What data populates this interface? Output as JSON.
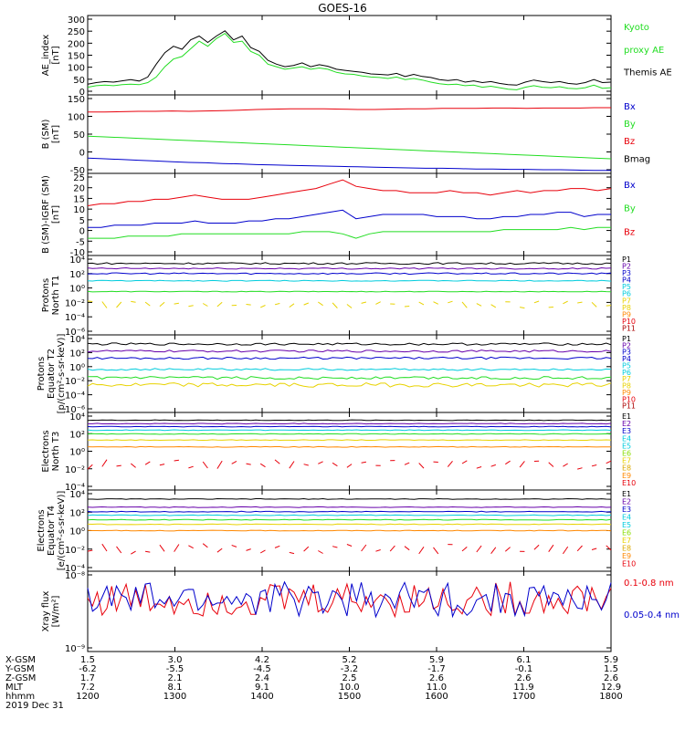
{
  "title": "GOES-16",
  "colors": {
    "black": "#000000",
    "red": "#e8000b",
    "green": "#22dd22",
    "blue": "#0000cc",
    "orange": "#ff8800",
    "yellow": "#e8d200",
    "cyan": "#00ccdd",
    "purple": "#6600aa",
    "gold": "#ddaa00",
    "lgreen": "#88dd00",
    "darkred": "#aa0000"
  },
  "chart_data": [
    {
      "type": "line",
      "id": "ae",
      "ylabel": [
        "AE_index",
        "[nT]"
      ],
      "yticks": [
        "300",
        "250",
        "200",
        "150",
        "100",
        "50",
        "0"
      ],
      "ylim": [
        0,
        310
      ],
      "legend": [
        {
          "text": "Kyoto",
          "color": "green"
        },
        {
          "text": "proxy AE",
          "color": "green"
        },
        {
          "text": "Themis AE",
          "color": "black"
        }
      ],
      "series": [
        {
          "name": "Themis AE",
          "color": "black",
          "values": [
            42,
            48,
            52,
            50,
            55,
            60,
            54,
            70,
            120,
            165,
            190,
            178,
            215,
            230,
            205,
            230,
            250,
            215,
            230,
            185,
            170,
            135,
            120,
            110,
            115,
            125,
            110,
            118,
            112,
            100,
            96,
            92,
            88,
            82,
            80,
            78,
            84,
            72,
            80,
            72,
            68,
            60,
            56,
            60,
            50,
            55,
            48,
            52,
            45,
            40,
            38,
            50,
            58,
            52,
            48,
            52,
            45,
            42,
            48,
            60,
            48,
            50
          ]
        },
        {
          "name": "Kyoto proxy AE",
          "color": "green",
          "values": [
            30,
            36,
            38,
            36,
            40,
            42,
            40,
            48,
            70,
            110,
            140,
            150,
            180,
            210,
            190,
            220,
            240,
            205,
            210,
            170,
            155,
            120,
            110,
            100,
            105,
            110,
            100,
            105,
            100,
            88,
            82,
            80,
            74,
            70,
            68,
            64,
            70,
            60,
            64,
            58,
            50,
            44,
            40,
            42,
            36,
            38,
            30,
            34,
            28,
            22,
            20,
            30,
            36,
            30,
            28,
            32,
            26,
            24,
            28,
            38,
            26,
            28
          ]
        }
      ]
    },
    {
      "type": "line",
      "id": "bsm",
      "ylabel": [
        "B (SM)",
        "[nT]"
      ],
      "yticks": [
        "150",
        "100",
        "50",
        "0",
        "-50"
      ],
      "ylim": [
        -60,
        155
      ],
      "legend": [
        {
          "text": "Bx",
          "color": "blue"
        },
        {
          "text": "By",
          "color": "green"
        },
        {
          "text": "Bz",
          "color": "red"
        },
        {
          "text": "Bmag",
          "color": "black"
        }
      ],
      "series": [
        {
          "name": "Bz",
          "color": "red",
          "values": [
            108,
            108,
            109,
            110,
            110,
            111,
            110,
            111,
            112,
            113,
            115,
            116,
            117,
            117,
            117,
            116,
            115,
            115,
            116,
            117,
            117,
            118,
            118,
            118,
            119,
            119,
            118,
            119,
            119,
            119,
            120,
            120
          ]
        },
        {
          "name": "By",
          "color": "green",
          "values": [
            42,
            40,
            38,
            36,
            34,
            32,
            30,
            28,
            26,
            24,
            22,
            20,
            18,
            16,
            14,
            12,
            10,
            8,
            6,
            4,
            2,
            0,
            -2,
            -4,
            -6,
            -8,
            -10,
            -12,
            -14,
            -16,
            -18,
            -20
          ]
        },
        {
          "name": "Bx",
          "color": "blue",
          "values": [
            -18,
            -20,
            -22,
            -24,
            -26,
            -28,
            -30,
            -31,
            -33,
            -34,
            -36,
            -37,
            -38,
            -39,
            -40,
            -41,
            -42,
            -43,
            -44,
            -45,
            -46,
            -46,
            -47,
            -48,
            -48,
            -49,
            -49,
            -50,
            -50,
            -51,
            -52,
            -52
          ]
        }
      ]
    },
    {
      "type": "line",
      "id": "bigrf",
      "ylabel": [
        "B (SM)-IGRF (SM)",
        "[nT]"
      ],
      "yticks": [
        "25",
        "20",
        "15",
        "10",
        "5",
        "0",
        "-5",
        "-10"
      ],
      "ylim": [
        -11,
        27
      ],
      "legend": [
        {
          "text": "Bx",
          "color": "blue"
        },
        {
          "text": "By",
          "color": "green"
        },
        {
          "text": "Bz",
          "color": "red"
        }
      ],
      "series": [
        {
          "name": "Bz",
          "color": "red",
          "values": [
            12,
            13,
            13,
            14,
            14,
            15,
            15,
            16,
            17,
            16,
            15,
            15,
            15,
            16,
            17,
            18,
            19,
            20,
            22,
            24,
            21,
            20,
            19,
            19,
            18,
            18,
            18,
            19,
            18,
            18,
            17,
            18,
            19,
            18,
            19,
            19,
            20,
            20,
            19,
            20
          ]
        },
        {
          "name": "Bx",
          "color": "blue",
          "values": [
            2,
            2,
            3,
            3,
            3,
            4,
            4,
            4,
            5,
            4,
            4,
            4,
            5,
            5,
            6,
            6,
            7,
            8,
            9,
            10,
            6,
            7,
            8,
            8,
            8,
            8,
            7,
            7,
            7,
            6,
            6,
            7,
            7,
            8,
            8,
            9,
            9,
            7,
            8,
            8
          ]
        },
        {
          "name": "By",
          "color": "green",
          "values": [
            -3,
            -3,
            -3,
            -2,
            -2,
            -2,
            -2,
            -1,
            -1,
            -1,
            -1,
            -1,
            -1,
            -1,
            -1,
            -1,
            0,
            0,
            0,
            -1,
            -3,
            -1,
            0,
            0,
            0,
            0,
            0,
            0,
            0,
            0,
            0,
            1,
            1,
            1,
            1,
            1,
            2,
            1,
            2,
            2
          ]
        }
      ]
    },
    {
      "type": "line",
      "id": "pn",
      "log": true,
      "ylabel": [
        "Protons",
        "North T1"
      ],
      "yticks": [
        "10⁴",
        "10²",
        "10⁰",
        "10⁻²",
        "10⁻⁴",
        "10⁻⁶"
      ],
      "ylim": [
        -7,
        4
      ],
      "legend": [
        {
          "text": "P1",
          "color": "black"
        },
        {
          "text": "P2",
          "color": "purple"
        },
        {
          "text": "P3",
          "color": "blue"
        },
        {
          "text": "P4",
          "color": "blue"
        },
        {
          "text": "P5",
          "color": "cyan"
        },
        {
          "text": "P6",
          "color": "cyan"
        },
        {
          "text": "P7",
          "color": "yellow"
        },
        {
          "text": "P8",
          "color": "yellow"
        },
        {
          "text": "P9",
          "color": "orange"
        },
        {
          "text": "P10",
          "color": "red"
        },
        {
          "text": "P11",
          "color": "darkred"
        }
      ],
      "series": [
        {
          "name": "P1",
          "color": "black",
          "level": 2.9,
          "noise": 0.12
        },
        {
          "name": "P2",
          "color": "purple",
          "level": 2.2,
          "noise": 0.1
        },
        {
          "name": "P3",
          "color": "blue",
          "level": 1.5,
          "noise": 0.1
        },
        {
          "name": "P4",
          "color": "cyan",
          "level": 0.5,
          "noise": 0.06
        },
        {
          "name": "P5",
          "color": "green",
          "level": -1.0,
          "noise": 0.05
        },
        {
          "name": "P6",
          "color": "yellow",
          "level": -2.8,
          "noise": 0.5,
          "broken": true
        }
      ]
    },
    {
      "type": "line",
      "id": "pe",
      "log": true,
      "ylabel": [
        "Protons",
        "Equator T2",
        "[p/(cm²-s-sr-keV)]"
      ],
      "yticks": [
        "10⁴",
        "10²",
        "10⁰",
        "10⁻²",
        "10⁻⁴",
        "10⁻⁶"
      ],
      "ylim": [
        -7,
        4
      ],
      "legend": [
        {
          "text": "P1",
          "color": "black"
        },
        {
          "text": "P2",
          "color": "purple"
        },
        {
          "text": "P3",
          "color": "blue"
        },
        {
          "text": "P4",
          "color": "blue"
        },
        {
          "text": "P5",
          "color": "cyan"
        },
        {
          "text": "P6",
          "color": "cyan"
        },
        {
          "text": "P7",
          "color": "yellow"
        },
        {
          "text": "P8",
          "color": "yellow"
        },
        {
          "text": "P9",
          "color": "orange"
        },
        {
          "text": "P10",
          "color": "red"
        },
        {
          "text": "P11",
          "color": "darkred"
        }
      ],
      "series": [
        {
          "name": "P1",
          "color": "black",
          "level": 2.7,
          "noise": 0.15
        },
        {
          "name": "P2",
          "color": "purple",
          "level": 1.7,
          "noise": 0.15
        },
        {
          "name": "P3",
          "color": "blue",
          "level": 0.7,
          "noise": 0.15
        },
        {
          "name": "P4",
          "color": "cyan",
          "level": -0.9,
          "noise": 0.15
        },
        {
          "name": "P5",
          "color": "green",
          "level": -2.1,
          "noise": 0.2
        },
        {
          "name": "P6",
          "color": "yellow",
          "level": -3.1,
          "noise": 0.3
        }
      ]
    },
    {
      "type": "line",
      "id": "en",
      "log": true,
      "ylabel": [
        "Electrons",
        "North T3"
      ],
      "yticks": [
        "10⁴",
        "10²",
        "10⁰",
        "10⁻²",
        "10⁻⁴"
      ],
      "ylim": [
        -5,
        4
      ],
      "legend": [
        {
          "text": "E1",
          "color": "black"
        },
        {
          "text": "E2",
          "color": "purple"
        },
        {
          "text": "E3",
          "color": "blue"
        },
        {
          "text": "E4",
          "color": "cyan"
        },
        {
          "text": "E5",
          "color": "cyan"
        },
        {
          "text": "E6",
          "color": "lgreen"
        },
        {
          "text": "E7",
          "color": "yellow"
        },
        {
          "text": "E8",
          "color": "gold"
        },
        {
          "text": "E9",
          "color": "orange"
        },
        {
          "text": "E10",
          "color": "red"
        }
      ],
      "series": [
        {
          "name": "E1",
          "color": "black",
          "level": 3.1,
          "noise": 0.04
        },
        {
          "name": "E2",
          "color": "purple",
          "level": 2.7,
          "noise": 0.04
        },
        {
          "name": "E3",
          "color": "blue",
          "level": 2.35,
          "noise": 0.04
        },
        {
          "name": "E4",
          "color": "cyan",
          "level": 1.95,
          "noise": 0.04
        },
        {
          "name": "E5",
          "color": "green",
          "level": 1.5,
          "noise": 0.04
        },
        {
          "name": "E6",
          "color": "yellow",
          "level": 0.8,
          "noise": 0.04
        },
        {
          "name": "E7",
          "color": "orange",
          "level": 0.0,
          "noise": 0.04
        },
        {
          "name": "E8",
          "color": "red",
          "level": -2.0,
          "noise": 0.6,
          "broken": true
        }
      ]
    },
    {
      "type": "line",
      "id": "ee",
      "log": true,
      "ylabel": [
        "Electrons",
        "Equator T4",
        "[e/(cm²-s-sr-keV)]"
      ],
      "yticks": [
        "10⁴",
        "10²",
        "10⁰",
        "10⁻²",
        "10⁻⁴"
      ],
      "ylim": [
        -5,
        4
      ],
      "legend": [
        {
          "text": "E1",
          "color": "black"
        },
        {
          "text": "E2",
          "color": "purple"
        },
        {
          "text": "E3",
          "color": "blue"
        },
        {
          "text": "E4",
          "color": "cyan"
        },
        {
          "text": "E5",
          "color": "cyan"
        },
        {
          "text": "E6",
          "color": "lgreen"
        },
        {
          "text": "E7",
          "color": "yellow"
        },
        {
          "text": "E8",
          "color": "gold"
        },
        {
          "text": "E9",
          "color": "orange"
        },
        {
          "text": "E10",
          "color": "red"
        }
      ],
      "series": [
        {
          "name": "E1",
          "color": "black",
          "level": 3.0,
          "noise": 0.04
        },
        {
          "name": "E2",
          "color": "purple",
          "level": 2.1,
          "noise": 0.04
        },
        {
          "name": "E3",
          "color": "blue",
          "level": 1.6,
          "noise": 0.04
        },
        {
          "name": "E4",
          "color": "cyan",
          "level": 1.2,
          "noise": 0.04
        },
        {
          "name": "E5",
          "color": "green",
          "level": 0.7,
          "noise": 0.04
        },
        {
          "name": "E6",
          "color": "yellow",
          "level": 0.2,
          "noise": 0.04
        },
        {
          "name": "E7",
          "color": "orange",
          "level": -0.5,
          "noise": 0.04
        },
        {
          "name": "E8",
          "color": "red",
          "level": -2.5,
          "noise": 0.6,
          "broken": true
        }
      ]
    },
    {
      "type": "line",
      "id": "xray",
      "log": true,
      "ylabel": [
        "Xray flux",
        "[W/m²]"
      ],
      "yticks": [
        "10⁻⁸",
        "10⁻⁹"
      ],
      "ylim": [
        -9,
        -8
      ],
      "legend": [
        {
          "text": "0.1-0.8 nm",
          "color": "red"
        },
        {
          "text": "0.05-0.4 nm",
          "color": "blue"
        }
      ],
      "series": [
        {
          "name": "0.1-0.8 nm",
          "color": "red",
          "level": -8.35,
          "noise": 0.22
        },
        {
          "name": "0.05-0.4 nm",
          "color": "blue",
          "level": -8.35,
          "noise": 0.22
        }
      ]
    }
  ],
  "x_axis": {
    "labels": [
      "X-GSM",
      "Y-GSM",
      "Z-GSM",
      "MLT",
      "hhmm",
      "2019 Dec 31"
    ],
    "ticks": [
      {
        "t": 1200,
        "vals": [
          "1.5",
          "-6.2",
          "1.7",
          "7.2",
          "1200"
        ]
      },
      {
        "t": 1300,
        "vals": [
          "3.0",
          "-5.5",
          "2.1",
          "8.1",
          "1300"
        ]
      },
      {
        "t": 1400,
        "vals": [
          "4.2",
          "-4.5",
          "2.4",
          "9.1",
          "1400"
        ]
      },
      {
        "t": 1500,
        "vals": [
          "5.2",
          "-3.2",
          "2.5",
          "10.0",
          "1500"
        ]
      },
      {
        "t": 1600,
        "vals": [
          "5.9",
          "-1.7",
          "2.6",
          "11.0",
          "1600"
        ]
      },
      {
        "t": 1700,
        "vals": [
          "6.1",
          "-0.1",
          "2.6",
          "11.9",
          "1700"
        ]
      },
      {
        "t": 1800,
        "vals": [
          "5.9",
          "1.5",
          "2.6",
          "12.9",
          "1800"
        ]
      }
    ]
  }
}
